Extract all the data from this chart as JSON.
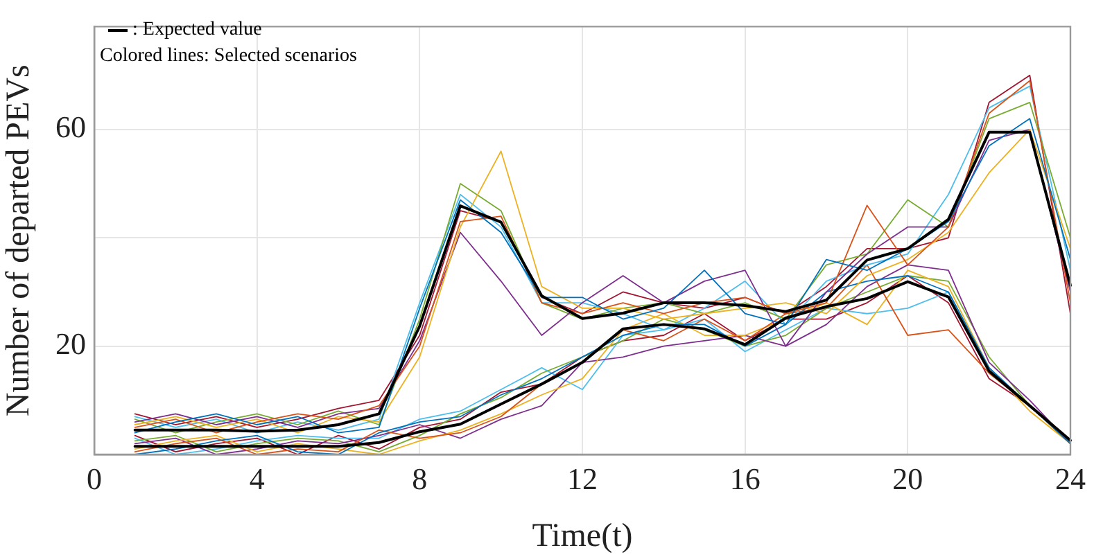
{
  "chart_data": {
    "type": "line",
    "xlabel": "Time(t)",
    "ylabel": "Number of departed PEVs",
    "annotations": [
      ": Expected value",
      "Colored lines: Selected scenarios"
    ],
    "x": [
      1,
      2,
      3,
      4,
      5,
      6,
      7,
      8,
      9,
      10,
      11,
      12,
      13,
      14,
      15,
      16,
      17,
      18,
      19,
      20,
      21,
      22,
      23,
      24
    ],
    "xlim": [
      0,
      24
    ],
    "xticks": [
      0,
      4,
      8,
      12,
      16,
      20,
      24
    ],
    "ylim": [
      0,
      79
    ],
    "yticks": [
      20,
      {
        "value": 40,
        "label": null
      },
      60
    ],
    "grid": true,
    "legend": false,
    "marker": "none",
    "line_style": "solid",
    "series": [
      {
        "color": "#0072bd",
        "values": [
          4,
          6,
          7.5,
          5.5,
          7,
          4,
          5,
          27,
          47,
          41,
          29,
          29,
          25,
          27,
          34,
          26,
          24,
          36,
          34,
          38,
          43,
          57,
          62,
          36
        ]
      },
      {
        "color": "#d95319",
        "values": [
          5,
          6.5,
          4,
          6,
          7.5,
          6.5,
          9,
          20,
          43,
          44,
          28,
          26,
          28,
          26,
          28,
          29,
          26,
          28,
          46,
          35,
          42,
          63,
          69,
          28
        ]
      },
      {
        "color": "#edb120",
        "values": [
          5.5,
          7,
          5,
          6.5,
          4,
          7,
          6,
          18,
          42,
          56,
          31,
          27,
          27,
          25,
          26,
          27,
          28,
          26,
          33,
          36,
          41,
          52,
          60,
          38
        ]
      },
      {
        "color": "#7e2f8e",
        "values": [
          6,
          7.5,
          5.5,
          7,
          5,
          7.5,
          8.5,
          21,
          41,
          32,
          22,
          28,
          33,
          28,
          32,
          34,
          20,
          30,
          37,
          42,
          42,
          58,
          60,
          30
        ]
      },
      {
        "color": "#77ac30",
        "values": [
          6.5,
          4,
          6,
          7.5,
          5.5,
          8,
          5.5,
          25,
          50,
          45,
          28,
          25,
          27,
          28,
          26,
          28,
          25,
          35,
          37,
          47,
          42,
          62,
          65,
          40
        ]
      },
      {
        "color": "#4dbeee",
        "values": [
          7,
          5,
          6.5,
          4,
          6,
          4.5,
          6.5,
          28,
          48,
          42,
          28,
          28,
          26,
          23,
          27,
          32,
          24,
          32,
          35,
          37,
          48,
          64,
          68,
          34
        ]
      },
      {
        "color": "#a2142f",
        "values": [
          7.5,
          5.5,
          7,
          5,
          6.5,
          8.5,
          10,
          22,
          45,
          43,
          29,
          26,
          30,
          28,
          27,
          29,
          26,
          31,
          38,
          38,
          40,
          65,
          70,
          26
        ]
      },
      {
        "color": "#0072bd",
        "values": [
          0,
          1,
          2.5,
          3.5,
          0.5,
          0,
          4,
          6,
          7,
          11,
          14,
          18,
          22,
          24,
          24,
          20,
          24,
          30,
          32,
          33,
          30,
          16,
          9,
          2
        ]
      },
      {
        "color": "#d95319",
        "values": [
          0.5,
          2,
          3,
          0,
          1,
          0.5,
          4.5,
          3,
          4,
          7,
          13,
          17,
          23,
          21,
          25,
          21,
          26,
          27,
          35,
          22,
          23,
          15,
          9,
          2
        ]
      },
      {
        "color": "#edb120",
        "values": [
          1,
          2.5,
          3.5,
          0.5,
          2,
          1,
          0,
          2.5,
          4.5,
          7.5,
          11,
          14,
          23,
          26,
          22,
          22,
          25,
          28,
          24,
          34,
          31,
          16,
          8,
          2
        ]
      },
      {
        "color": "#7e2f8e",
        "values": [
          2,
          3,
          0,
          1,
          2.5,
          2,
          3.5,
          5.5,
          3,
          6.5,
          9,
          17,
          18,
          20,
          21,
          22,
          20,
          24,
          31,
          35,
          34,
          17,
          10,
          2
        ]
      },
      {
        "color": "#77ac30",
        "values": [
          2.5,
          3.5,
          0.5,
          2,
          3,
          2.5,
          0.5,
          3.5,
          7.5,
          10.5,
          15,
          18,
          21,
          25,
          23,
          20,
          22,
          27,
          30,
          33,
          32,
          18,
          9,
          2
        ]
      },
      {
        "color": "#4dbeee",
        "values": [
          3,
          0,
          1,
          2.5,
          3.5,
          3,
          3,
          6.5,
          8,
          12,
          16,
          12,
          22,
          23,
          25,
          19,
          23,
          27,
          26,
          27,
          30,
          16,
          9,
          2
        ]
      },
      {
        "color": "#a2142f",
        "values": [
          3.5,
          0.5,
          2,
          3,
          0,
          3.5,
          1,
          5,
          6.5,
          11.5,
          13,
          18,
          21,
          22,
          26,
          21,
          25,
          25,
          28,
          33,
          28,
          14,
          9,
          2
        ]
      },
      {
        "color": "#000000",
        "values": [
          4.5,
          4.5,
          4.5,
          4.3,
          4.5,
          5.5,
          7.5,
          23.7,
          45.9,
          42.9,
          29.3,
          25.1,
          26.1,
          28,
          28,
          27.5,
          26.4,
          28.5,
          35.9,
          38,
          43.4,
          59.5,
          59.5,
          31.2
        ]
      },
      {
        "color": "#000000",
        "values": [
          1.5,
          1.5,
          1.5,
          1.5,
          1.5,
          1.5,
          2.2,
          4.2,
          5.6,
          9.3,
          13,
          17,
          23.2,
          24,
          23.2,
          20.3,
          25.2,
          27.3,
          28.8,
          31.9,
          29.1,
          15.4,
          9,
          2.6
        ]
      }
    ]
  }
}
